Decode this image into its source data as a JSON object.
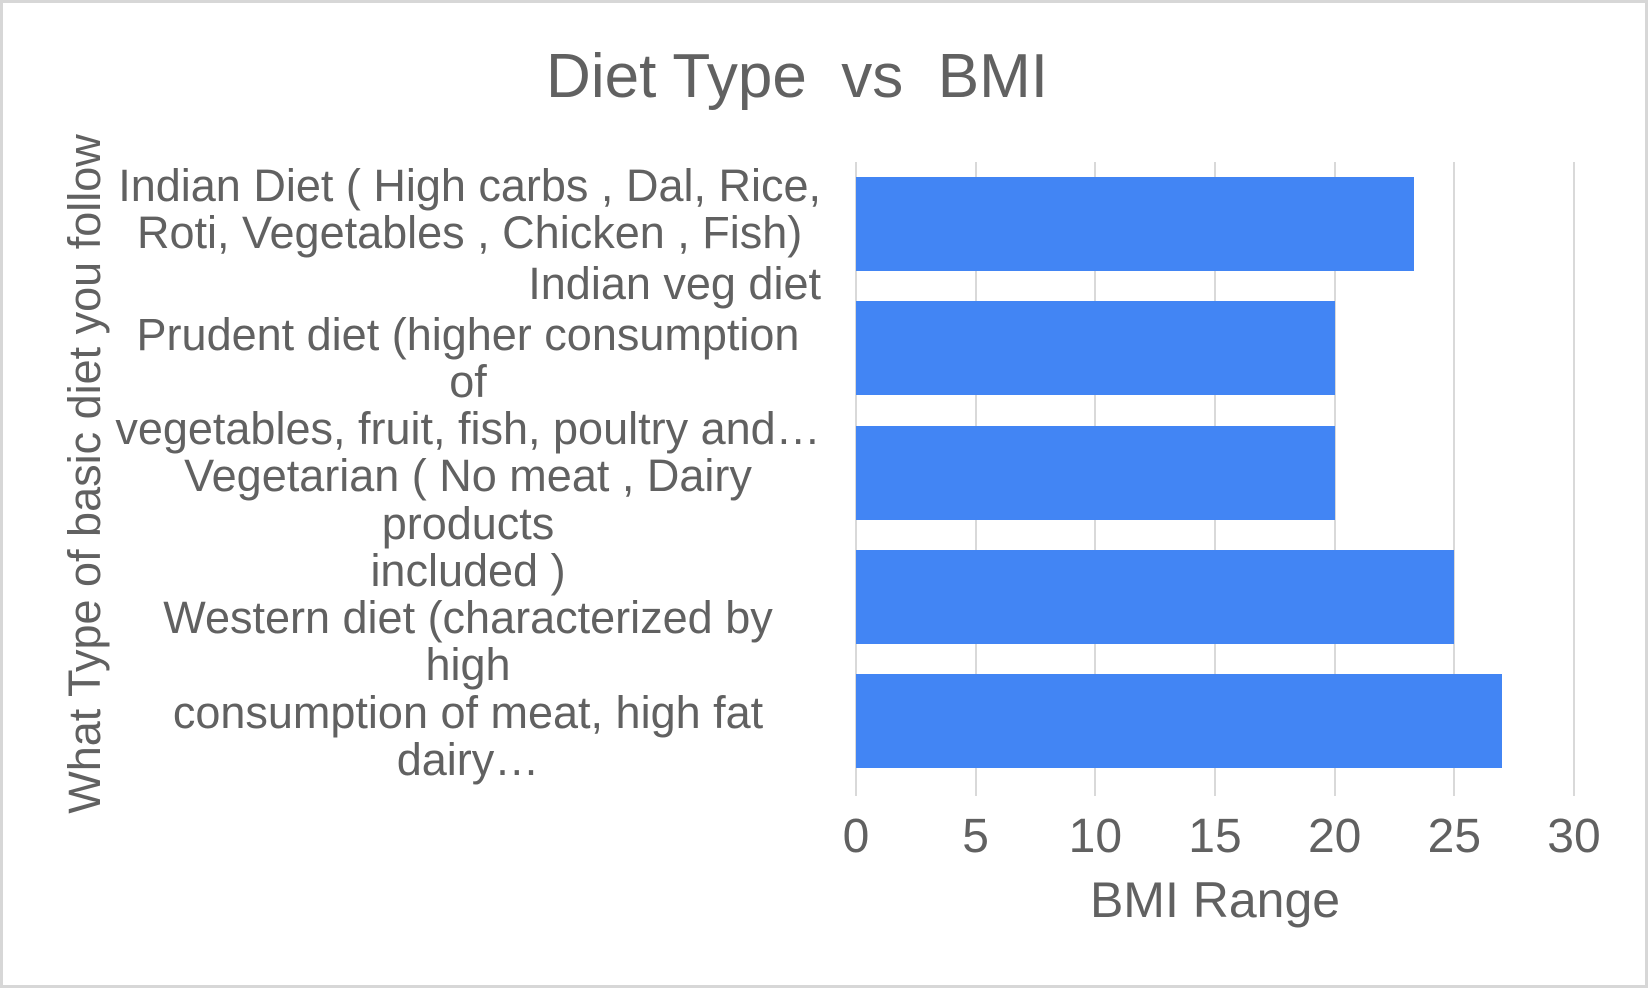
{
  "colors": {
    "bar": "#4285f4",
    "text": "#616161",
    "gridline": "#d9d9d9",
    "canvas_border": "#d7d7d7",
    "background": "#ffffff"
  },
  "chart_data": {
    "type": "bar",
    "orientation": "horizontal",
    "title": "Diet Type  vs  BMI",
    "xlabel": "BMI Range",
    "ylabel": "What Type of basic diet you follow",
    "categories": [
      "Indian Diet ( High carbs , Dal, Rice,\nRoti, Vegetables , Chicken , Fish)",
      "Indian veg diet",
      "Prudent diet (higher consumption of\nvegetables, fruit, fish, poultry and…",
      "Vegetarian ( No meat , Dairy products\nincluded )",
      "Western diet (characterized by high\nconsumption of meat, high fat dairy…"
    ],
    "values": [
      23.33,
      20,
      20,
      25,
      27
    ],
    "xlim": [
      0,
      30
    ],
    "xticks": [
      0,
      5,
      10,
      15,
      20,
      25,
      30
    ],
    "grid": "vertical-major",
    "legend": "none"
  }
}
